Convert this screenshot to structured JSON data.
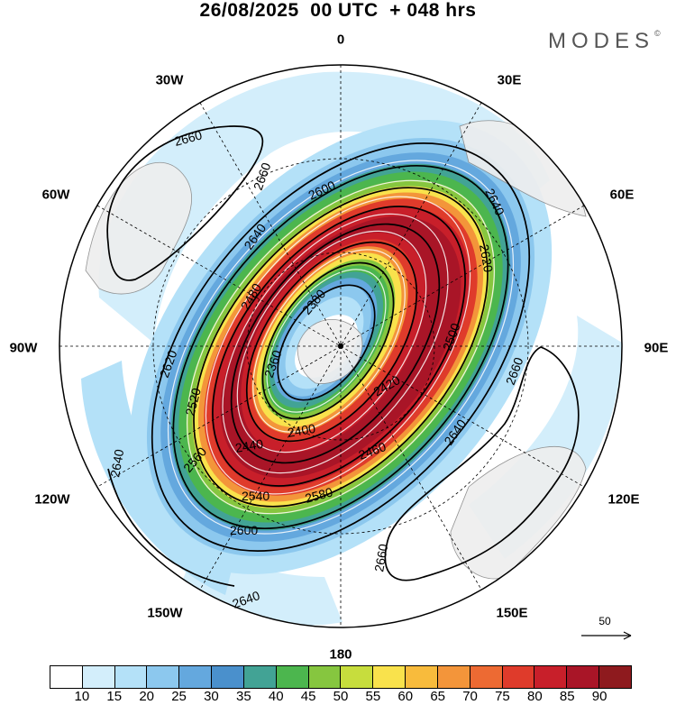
{
  "title": "26/08/2025  00 UTC  + 048 hrs",
  "brand": "MODES",
  "brand_mark": "©",
  "longitude_labels": {
    "lon_0": "0",
    "lon_30e": "30E",
    "lon_60e": "60E",
    "lon_90e": "90E",
    "lon_120e": "120E",
    "lon_150e": "150E",
    "lon_180": "180",
    "lon_150w": "150W",
    "lon_120w": "120W",
    "lon_90w": "90W",
    "lon_60w": "60W",
    "lon_30w": "30W"
  },
  "contour_labels": {
    "c2660_nw": "2660",
    "c2660_nw2": "2660",
    "c2640_n": "2640",
    "c2600_n": "2600",
    "c2640_ne": "2640",
    "c2620_ne": "2620",
    "c2660_e": "2660",
    "c2640_se": "2640",
    "c2660_s": "2660",
    "c2640_s": "2640",
    "c2600_s": "2600",
    "c2540_s": "2540",
    "c2580_s": "2580",
    "c2560_sw": "2560",
    "c2520_w": "2520",
    "c2640_w": "2640",
    "c2620_w": "2620",
    "c2440_in": "2440",
    "c2400_in": "2400",
    "c2420_in": "2420",
    "c2380_in": "2380",
    "c2360_in": "2360",
    "c2480_in": "2480",
    "c2500_in": "2500",
    "c2460_in": "2460"
  },
  "reference_vector": "50",
  "colorbar": {
    "colors": [
      "#ffffff",
      "#d3eefb",
      "#b4e1f8",
      "#8cc8ee",
      "#64a8de",
      "#4a90cc",
      "#42a395",
      "#4cb64e",
      "#86c63f",
      "#c7dd3d",
      "#f9e24c",
      "#f8bb3c",
      "#f3953a",
      "#ed6a33",
      "#df3b2b",
      "#c81f2a",
      "#a91527",
      "#8e1a1e"
    ],
    "ticks": [
      "10",
      "15",
      "20",
      "25",
      "30",
      "35",
      "40",
      "45",
      "50",
      "55",
      "60",
      "65",
      "70",
      "75",
      "80",
      "85",
      "90"
    ]
  }
}
